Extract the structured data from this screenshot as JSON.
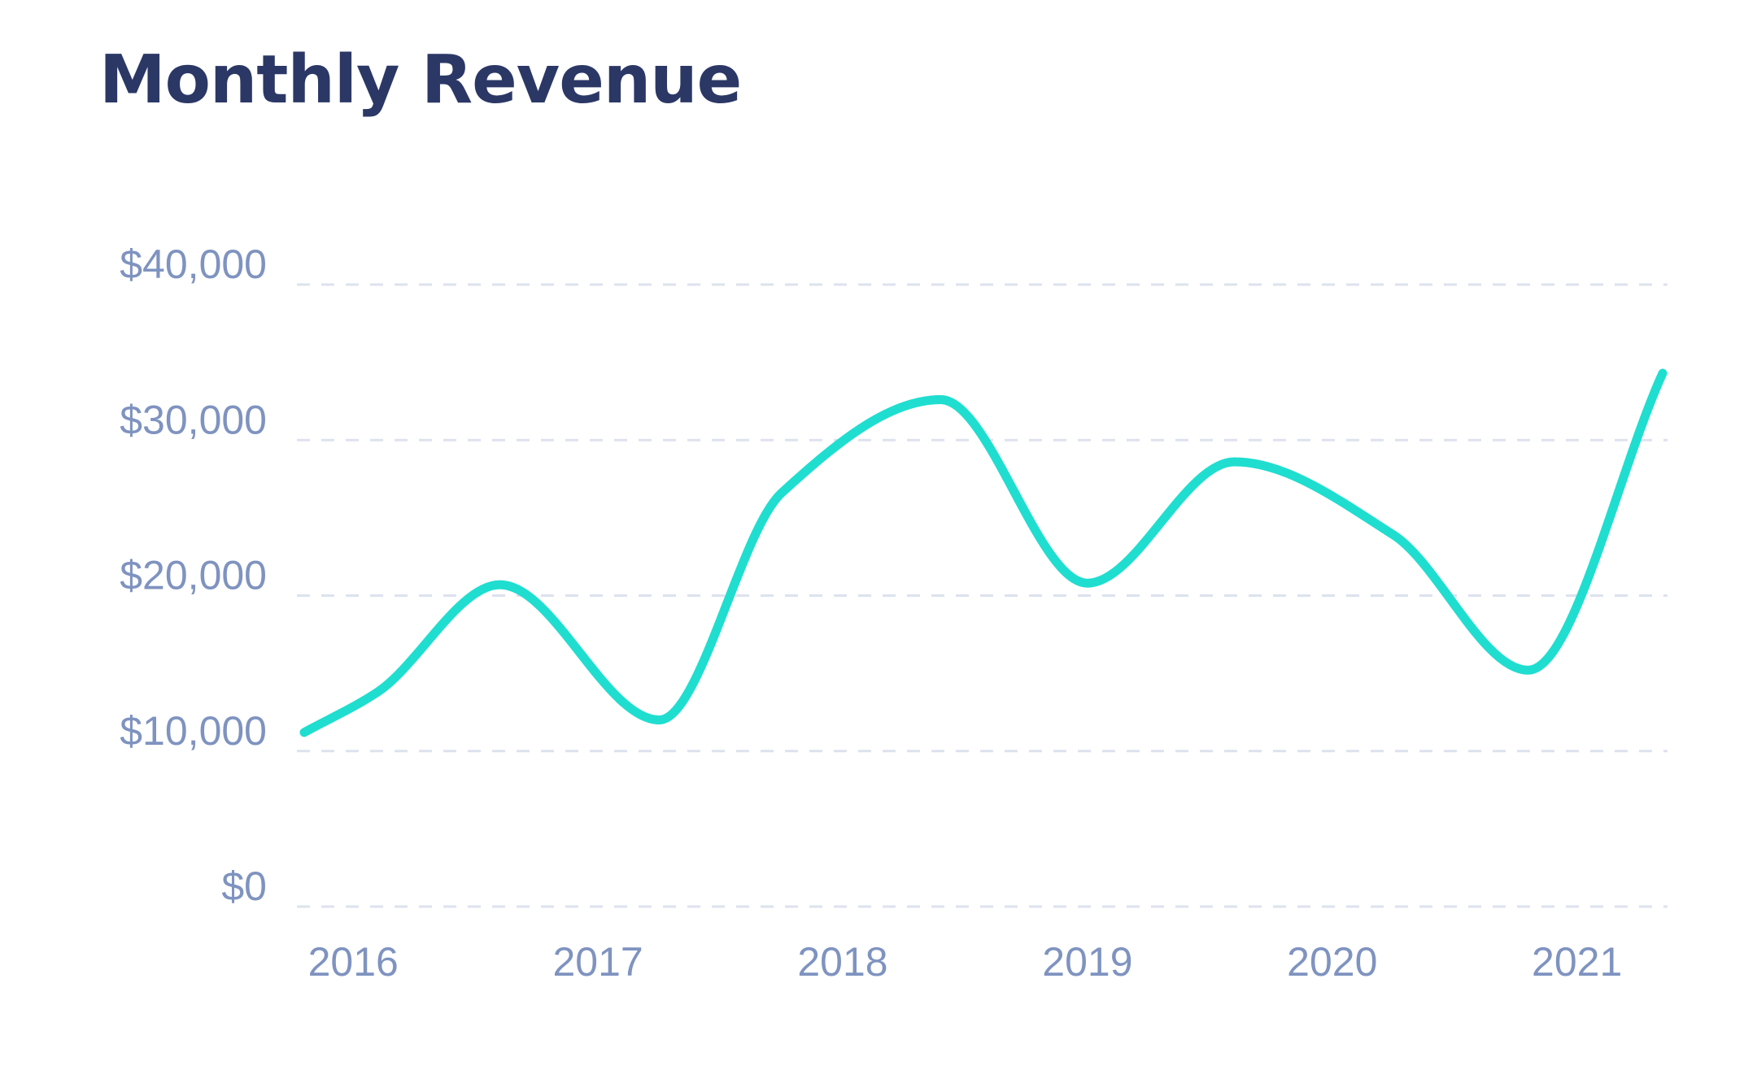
{
  "colors": {
    "title": "#2b3866",
    "tick": "#7f93c0",
    "grid": "#dde2ee",
    "line": "#1fded0"
  },
  "chart_data": {
    "type": "line",
    "title": "Monthly Revenue",
    "xlabel": "",
    "ylabel": "",
    "grid": true,
    "legend": "none",
    "ylim": [
      0,
      40000
    ],
    "yticks": [
      {
        "value": 0,
        "label": "$0"
      },
      {
        "value": 10000,
        "label": "$10,000"
      },
      {
        "value": 20000,
        "label": "$20,000"
      },
      {
        "value": 30000,
        "label": "$30,000"
      },
      {
        "value": 40000,
        "label": "$40,000"
      }
    ],
    "xlim": [
      2015.77,
      2021.37
    ],
    "xticks": [
      {
        "value": 2016,
        "label": "2016"
      },
      {
        "value": 2017,
        "label": "2017"
      },
      {
        "value": 2018,
        "label": "2018"
      },
      {
        "value": 2019,
        "label": "2019"
      },
      {
        "value": 2020,
        "label": "2020"
      },
      {
        "value": 2021,
        "label": "2021"
      }
    ],
    "series": [
      {
        "x": [
          2015.8,
          2016.1,
          2016.6,
          2017.25,
          2017.75,
          2018.4,
          2019.0,
          2019.6,
          2020.25,
          2020.8,
          2021.35
        ],
        "y": [
          11200,
          13800,
          20700,
          12000,
          26600,
          32600,
          20800,
          28600,
          23900,
          15200,
          34300
        ]
      }
    ]
  }
}
